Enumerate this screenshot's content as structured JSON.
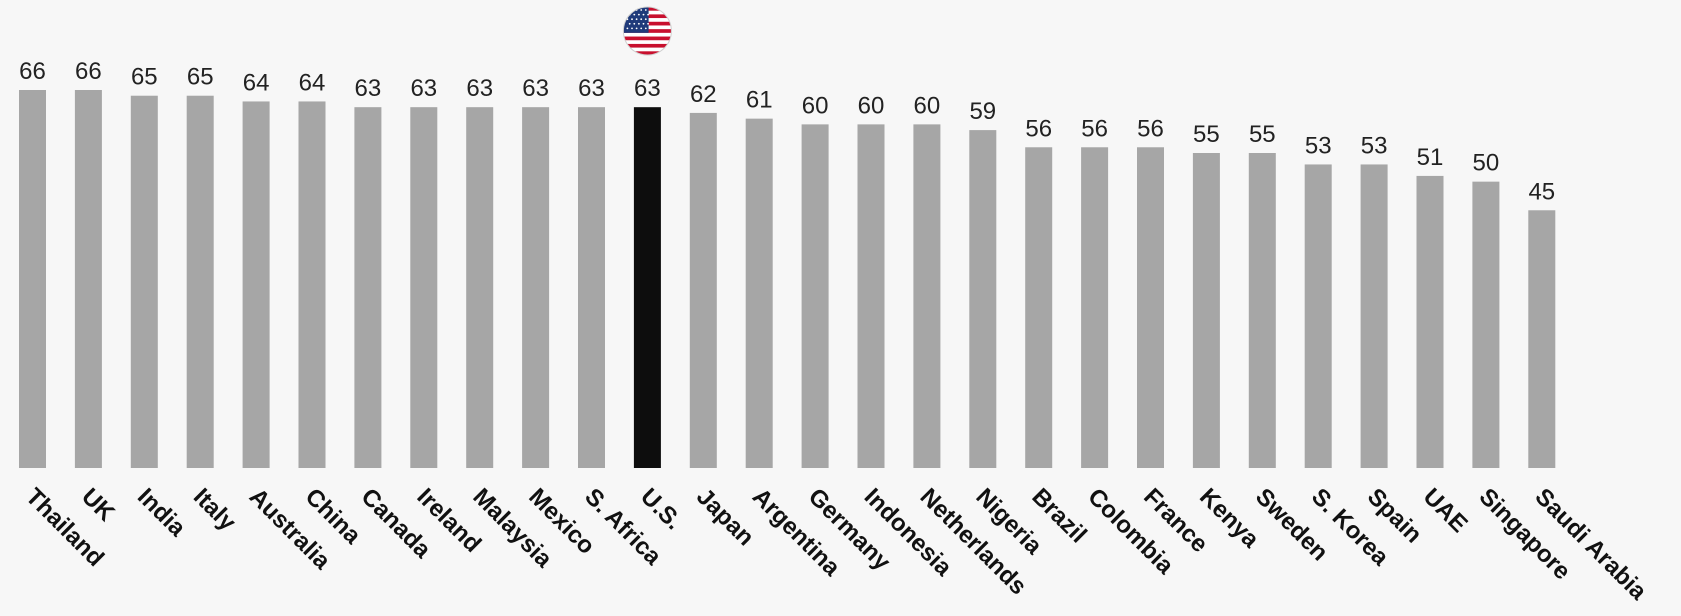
{
  "chart_data": {
    "type": "bar",
    "categories": [
      "Thailand",
      "UK",
      "India",
      "Italy",
      "Australia",
      "China",
      "Canada",
      "Ireland",
      "Malaysia",
      "Mexico",
      "S. Africa",
      "U.S.",
      "Japan",
      "Argentina",
      "Germany",
      "Indonesia",
      "Netherlands",
      "Nigeria",
      "Brazil",
      "Colombia",
      "France",
      "Kenya",
      "Sweden",
      "S. Korea",
      "Spain",
      "UAE",
      "Singapore",
      "Saudi Arabia"
    ],
    "values": [
      66,
      66,
      65,
      65,
      64,
      64,
      63,
      63,
      63,
      63,
      63,
      63,
      62,
      61,
      60,
      60,
      60,
      59,
      56,
      56,
      56,
      55,
      55,
      53,
      53,
      51,
      50,
      45
    ],
    "highlight_category": "U.S.",
    "highlight_icon": "us-flag-icon",
    "title": "",
    "xlabel": "",
    "ylabel": "",
    "ylim": [
      0,
      66
    ],
    "grid": false,
    "colors": {
      "bar": "#a6a6a6",
      "highlight_bar": "#0d0d0d",
      "background": "#f7f7f7",
      "value_text": "#222222",
      "category_text": "#111111"
    }
  }
}
